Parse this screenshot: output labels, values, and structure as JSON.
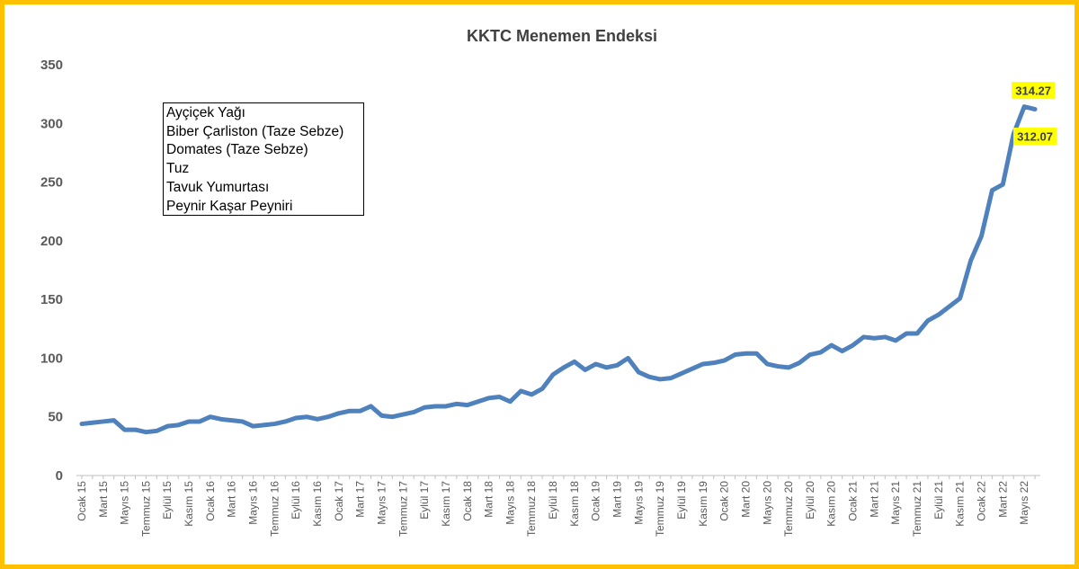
{
  "chart_data": {
    "type": "line",
    "title": "KKTC Menemen Endeksi",
    "xlabel": "",
    "ylabel": "",
    "ylim": [
      0,
      350
    ],
    "yticks": [
      0,
      50,
      100,
      150,
      200,
      250,
      300,
      350
    ],
    "grid": false,
    "x_tick_labels": [
      "Ocak 15",
      "Mart 15",
      "Mayıs 15",
      "Temmuz 15",
      "Eylül 15",
      "Kasım 15",
      "Ocak 16",
      "Mart 16",
      "Mayıs 16",
      "Temmuz 16",
      "Eylül 16",
      "Kasım 16",
      "Ocak 17",
      "Mart 17",
      "Mayıs 17",
      "Temmuz 17",
      "Eylül 17",
      "Kasım 17",
      "Ocak 18",
      "Mart 18",
      "Mayıs 18",
      "Temmuz 18",
      "Eylül 18",
      "Kasım 18",
      "Ocak 19",
      "Mart 19",
      "Mayıs 19",
      "Temmuz 19",
      "Eylül 19",
      "Kasım 19",
      "Ocak 20",
      "Mart 20",
      "Mayıs 20",
      "Temmuz 20",
      "Eylül 20",
      "Kasım 20",
      "Ocak 21",
      "Mart 21",
      "Mayıs 21",
      "Temmuz 21",
      "Eylül 21",
      "Kasım 21",
      "Ocak 22",
      "Mart 22",
      "Mayıs 22"
    ],
    "series": [
      {
        "color": "#4f81bd",
        "values": [
          44,
          45,
          46,
          47,
          39,
          39,
          37,
          38,
          42,
          43,
          46,
          46,
          50,
          48,
          47,
          46,
          42,
          43,
          44,
          46,
          49,
          50,
          48,
          50,
          53,
          55,
          55,
          59,
          51,
          50,
          52,
          54,
          58,
          59,
          59,
          61,
          60,
          63,
          66,
          67,
          63,
          72,
          69,
          74,
          86,
          92,
          97,
          90,
          95,
          92,
          94,
          100,
          88,
          84,
          82,
          83,
          87,
          91,
          95,
          96,
          98,
          103,
          104,
          104,
          95,
          93,
          92,
          96,
          103,
          105,
          111,
          106,
          111,
          118,
          117,
          118,
          115,
          121,
          121,
          132,
          137,
          144,
          151,
          183,
          204,
          243,
          248,
          291,
          314.27,
          312.07
        ]
      }
    ],
    "annotations": [
      {
        "text": "314.27",
        "x_index": 88,
        "value": 314.27
      },
      {
        "text": "312.07",
        "x_index": 89,
        "value": 312.07
      }
    ],
    "annotation_style": {
      "background": "#ffff00"
    },
    "legend_box": {
      "placement": "top-left",
      "items": [
        "Ayçiçek Yağı",
        "Biber Çarliston (Taze Sebze)",
        "Domates (Taze Sebze)",
        "Tuz",
        "Tavuk Yumurtası",
        "Peynir Kaşar Peyniri"
      ]
    },
    "frame_color": "#ffc000"
  }
}
